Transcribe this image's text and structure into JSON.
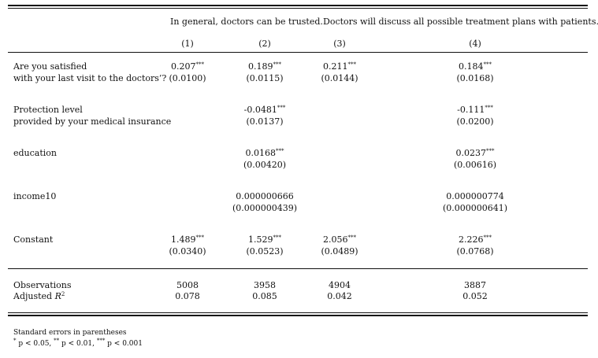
{
  "header": {
    "group1_title": "In general, doctors can be trusted.",
    "group2_title": "Doctors will discuss all possible treatment plans with patients.",
    "col_numbers": [
      "(1)",
      "(2)",
      "(3)",
      "(4)"
    ]
  },
  "rows": {
    "satisfied": {
      "label_line1": "Are you satisfied",
      "label_line2": "with your last visit to the doctors’?",
      "coef": [
        "0.207",
        "0.189",
        "0.211",
        "0.184"
      ],
      "stars": [
        "***",
        "***",
        "***",
        "***"
      ],
      "se": [
        "(0.0100)",
        "(0.0115)",
        "(0.0144)",
        "(0.0168)"
      ]
    },
    "protection": {
      "label_line1": "Protection level",
      "label_line2": "provided by your medical insurance",
      "coef": [
        "",
        "-0.0481",
        "",
        "-0.111"
      ],
      "stars": [
        "",
        "***",
        "",
        "***"
      ],
      "se": [
        "",
        "(0.0137)",
        "",
        "(0.0200)"
      ]
    },
    "education": {
      "label": "education",
      "coef": [
        "",
        "0.0168",
        "",
        "0.0237"
      ],
      "stars": [
        "",
        "***",
        "",
        "***"
      ],
      "se": [
        "",
        "(0.00420)",
        "",
        "(0.00616)"
      ]
    },
    "income10": {
      "label": "income10",
      "coef": [
        "",
        "0.000000666",
        "",
        "0.000000774"
      ],
      "stars": [
        "",
        "",
        "",
        ""
      ],
      "se": [
        "",
        "(0.000000439)",
        "",
        "(0.000000641)"
      ]
    },
    "constant": {
      "label": "Constant",
      "coef": [
        "1.489",
        "1.529",
        "2.056",
        "2.226"
      ],
      "stars": [
        "***",
        "***",
        "***",
        "***"
      ],
      "se": [
        "(0.0340)",
        "(0.0523)",
        "(0.0489)",
        "(0.0768)"
      ]
    }
  },
  "stats": {
    "observations_label": "Observations",
    "observations": [
      "5008",
      "3958",
      "4904",
      "3887"
    ],
    "adjr2_label_prefix": "Adjusted ",
    "adjr2_label_symbol": "R",
    "adjr2_label_exp": "2",
    "adjr2": [
      "0.078",
      "0.085",
      "0.042",
      "0.052"
    ]
  },
  "footnotes": {
    "line1": "Standard errors in parentheses",
    "p1_star": "*",
    "p1_text": " p < 0.05, ",
    "p2_star": "**",
    "p2_text": " p < 0.01, ",
    "p3_star": "***",
    "p3_text": " p < 0.001"
  }
}
